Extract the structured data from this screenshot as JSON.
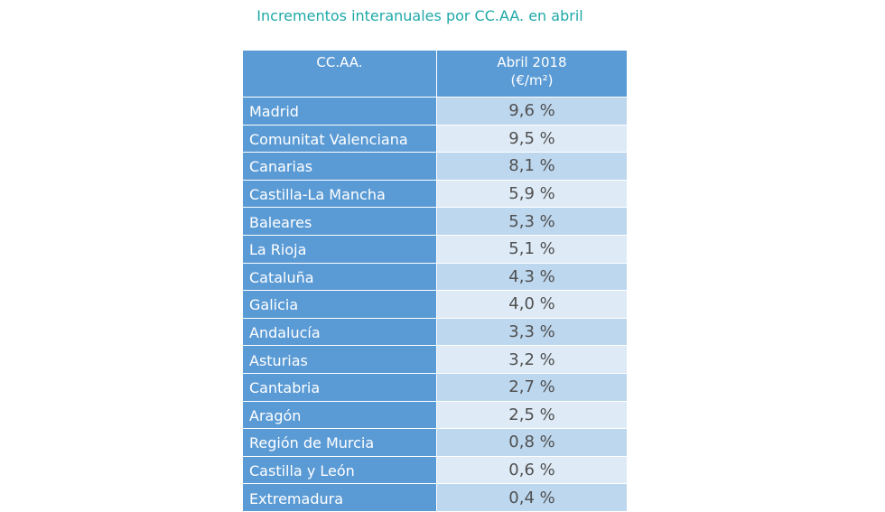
{
  "chart_data": {
    "type": "table",
    "title": "Incrementos interanuales por CC.AA. en abril",
    "columns": [
      "CC.AA.",
      "Abril 2018",
      "(€/m²)"
    ],
    "rows": [
      {
        "name": "Madrid",
        "value": "9,6 %"
      },
      {
        "name": "Comunitat Valenciana",
        "value": "9,5 %"
      },
      {
        "name": "Canarias",
        "value": "8,1 %"
      },
      {
        "name": "Castilla-La Mancha",
        "value": "5,9 %"
      },
      {
        "name": "Baleares",
        "value": "5,3 %"
      },
      {
        "name": "La Rioja",
        "value": "5,1 %"
      },
      {
        "name": "Cataluña",
        "value": "4,3 %"
      },
      {
        "name": "Galicia",
        "value": "4,0 %"
      },
      {
        "name": "Andalucía",
        "value": "3,3 %"
      },
      {
        "name": "Asturias",
        "value": "3,2 %"
      },
      {
        "name": "Cantabria",
        "value": "2,7 %"
      },
      {
        "name": "Aragón",
        "value": "2,5 %"
      },
      {
        "name": "Región de Murcia",
        "value": "0,8 %"
      },
      {
        "name": "Castilla y León",
        "value": "0,6 %"
      },
      {
        "name": "Extremadura",
        "value": "0,4 %"
      }
    ],
    "colors": {
      "header": "#5b9bd5",
      "row_odd": "#bdd7ee",
      "row_even": "#deebf7",
      "title": "#1fa8a8"
    }
  }
}
